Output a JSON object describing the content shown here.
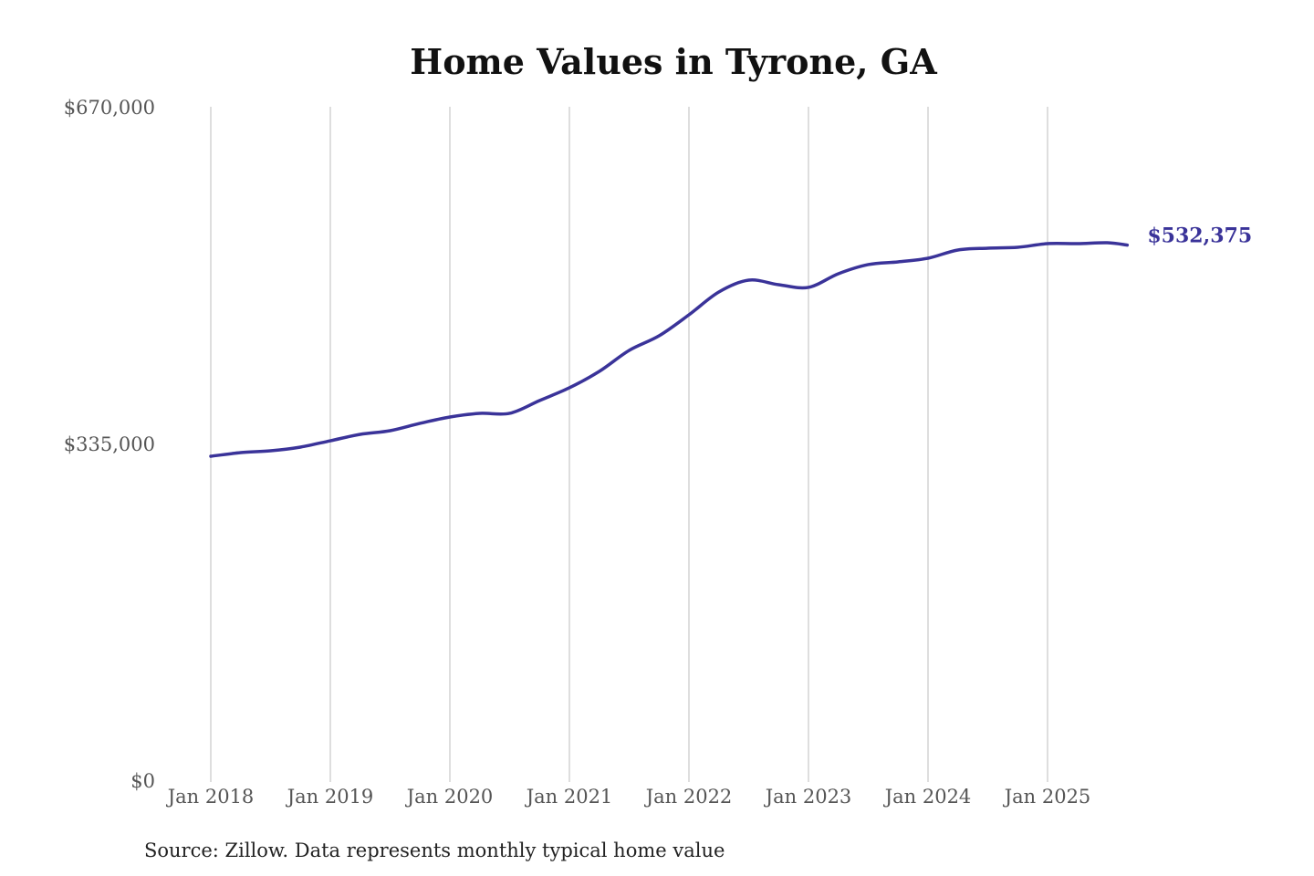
{
  "chart_data": {
    "type": "line",
    "title": "Home Values in Tyrone, GA",
    "source": "Source: Zillow. Data represents monthly typical home value",
    "xlabel": "",
    "ylabel": "",
    "ylim": [
      0,
      670000
    ],
    "y_ticks": [
      {
        "value": 0,
        "label": "$0"
      },
      {
        "value": 335000,
        "label": "$335,000"
      },
      {
        "value": 670000,
        "label": "$670,000"
      }
    ],
    "x_ticks": [
      {
        "value": "2018-01",
        "label": "Jan 2018"
      },
      {
        "value": "2019-01",
        "label": "Jan 2019"
      },
      {
        "value": "2020-01",
        "label": "Jan 2020"
      },
      {
        "value": "2021-01",
        "label": "Jan 2021"
      },
      {
        "value": "2022-01",
        "label": "Jan 2022"
      },
      {
        "value": "2023-01",
        "label": "Jan 2023"
      },
      {
        "value": "2024-01",
        "label": "Jan 2024"
      },
      {
        "value": "2025-01",
        "label": "Jan 2025"
      }
    ],
    "grid": "vertical",
    "line_color": "#3a3399",
    "end_label": "$532,375",
    "points": [
      {
        "x": "2018-01",
        "y": 322300
      },
      {
        "x": "2018-04",
        "y": 325900
      },
      {
        "x": "2018-07",
        "y": 327700
      },
      {
        "x": "2018-10",
        "y": 331400
      },
      {
        "x": "2019-01",
        "y": 337700
      },
      {
        "x": "2019-04",
        "y": 344100
      },
      {
        "x": "2019-07",
        "y": 347700
      },
      {
        "x": "2019-10",
        "y": 355000
      },
      {
        "x": "2020-01",
        "y": 361300
      },
      {
        "x": "2020-04",
        "y": 365000
      },
      {
        "x": "2020-07",
        "y": 365000
      },
      {
        "x": "2020-10",
        "y": 377700
      },
      {
        "x": "2021-01",
        "y": 390400
      },
      {
        "x": "2021-04",
        "y": 406700
      },
      {
        "x": "2021-07",
        "y": 427600
      },
      {
        "x": "2021-10",
        "y": 442100
      },
      {
        "x": "2022-01",
        "y": 463000
      },
      {
        "x": "2022-04",
        "y": 485700
      },
      {
        "x": "2022-07",
        "y": 497500
      },
      {
        "x": "2022-10",
        "y": 493000
      },
      {
        "x": "2023-01",
        "y": 490300
      },
      {
        "x": "2023-04",
        "y": 503900
      },
      {
        "x": "2023-07",
        "y": 513000
      },
      {
        "x": "2023-10",
        "y": 515700
      },
      {
        "x": "2024-01",
        "y": 519300
      },
      {
        "x": "2024-04",
        "y": 527500
      },
      {
        "x": "2024-07",
        "y": 529300
      },
      {
        "x": "2024-10",
        "y": 530200
      },
      {
        "x": "2025-01",
        "y": 533800
      },
      {
        "x": "2025-04",
        "y": 533800
      },
      {
        "x": "2025-07",
        "y": 534700
      },
      {
        "x": "2025-09",
        "y": 532375
      }
    ]
  }
}
